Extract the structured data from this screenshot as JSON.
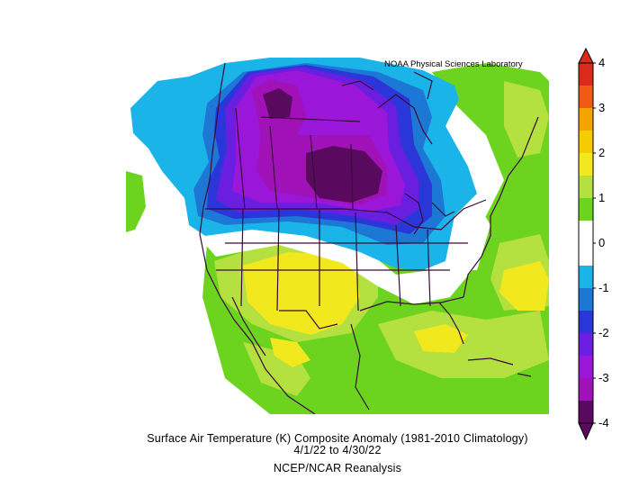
{
  "credit": "NOAA Physical Sciences Laboratory",
  "caption": {
    "line1": "Surface Air Temperature (K) Composite Anomaly (1981-2010 Climatology)",
    "line2": "4/1/22  to 4/30/22",
    "line3": "NCEP/NCAR Reanalysis"
  },
  "colorbar": {
    "tick_labels": [
      "4",
      "3",
      "2",
      "1",
      "0",
      "-1",
      "-2",
      "-3",
      "-4"
    ],
    "tick_values": [
      4,
      3,
      2,
      1,
      0,
      -1,
      -2,
      -3,
      -4
    ],
    "bins": [
      {
        "from": 3.5,
        "to": 4.0,
        "color": "#d92a1c"
      },
      {
        "from": 3.0,
        "to": 3.5,
        "color": "#f05a14"
      },
      {
        "from": 2.5,
        "to": 3.0,
        "color": "#f5a300"
      },
      {
        "from": 2.0,
        "to": 2.5,
        "color": "#f5cc00"
      },
      {
        "from": 1.5,
        "to": 2.0,
        "color": "#f2e81e"
      },
      {
        "from": 1.0,
        "to": 1.5,
        "color": "#b4e040"
      },
      {
        "from": 0.5,
        "to": 1.0,
        "color": "#6cd41e"
      },
      {
        "from": -0.5,
        "to": 0.5,
        "color": "#ffffff"
      },
      {
        "from": -1.0,
        "to": -0.5,
        "color": "#1ab4e8"
      },
      {
        "from": -1.5,
        "to": -1.0,
        "color": "#1c78d4"
      },
      {
        "from": -2.0,
        "to": -1.5,
        "color": "#2a36d8"
      },
      {
        "from": -2.5,
        "to": -2.0,
        "color": "#6a1ee0"
      },
      {
        "from": -3.0,
        "to": -2.5,
        "color": "#9a16d8"
      },
      {
        "from": -3.5,
        "to": -3.0,
        "color": "#a012b8"
      },
      {
        "from": -4.0,
        "to": -3.5,
        "color": "#5a0a5e"
      }
    ],
    "range": [
      -4,
      4
    ]
  }
}
